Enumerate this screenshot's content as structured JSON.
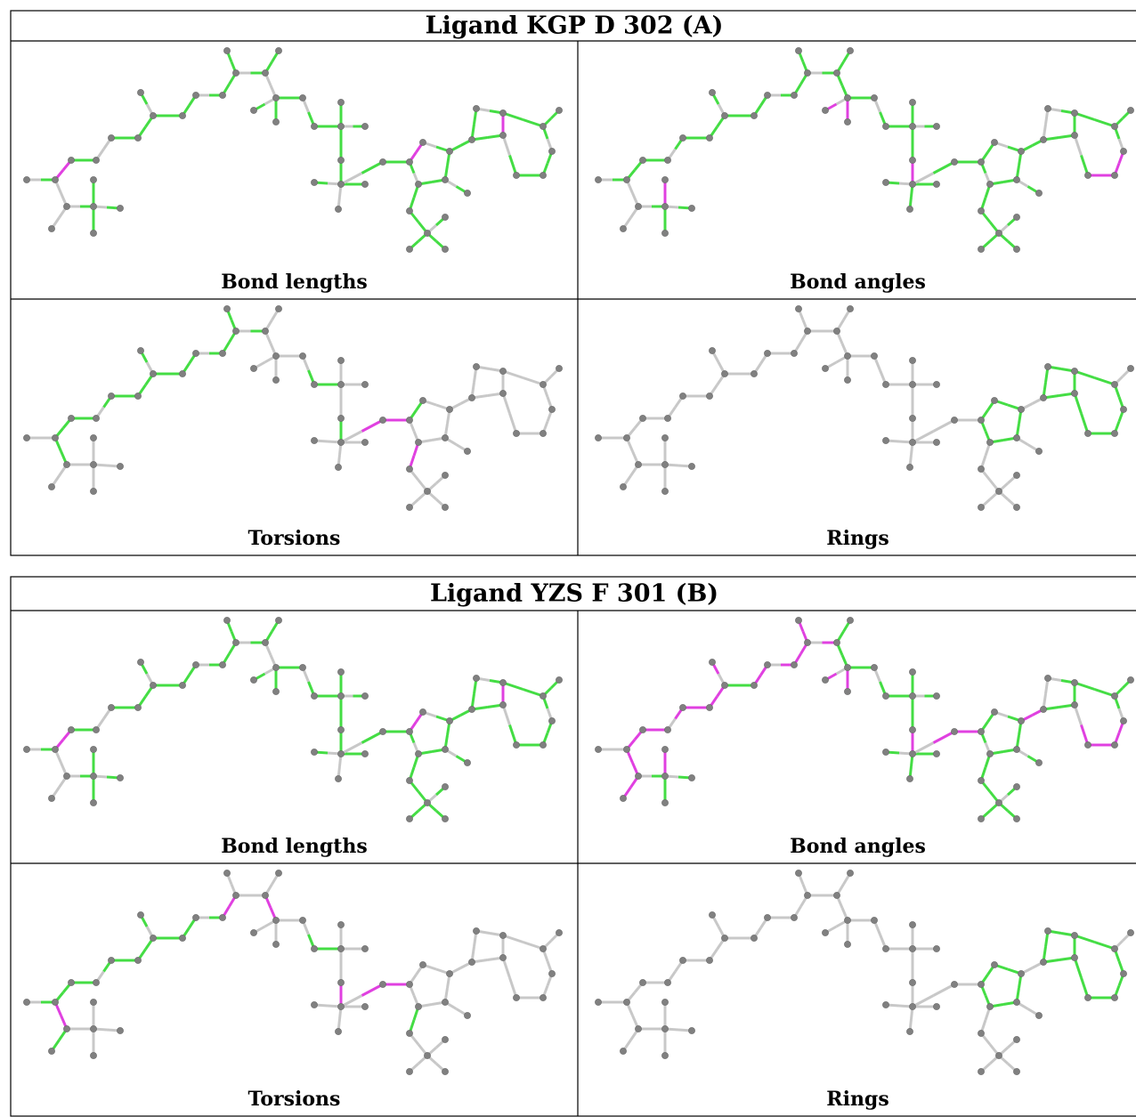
{
  "panels": [
    {
      "title": "Ligand KGP D 302 (A)",
      "cells": [
        {
          "caption": "Bond lengths"
        },
        {
          "caption": "Bond angles"
        },
        {
          "caption": "Torsions"
        },
        {
          "caption": "Rings"
        }
      ]
    },
    {
      "title": "Ligand YZS F 301 (B)",
      "cells": [
        {
          "caption": "Bond lengths"
        },
        {
          "caption": "Bond angles"
        },
        {
          "caption": "Torsions"
        },
        {
          "caption": "Rings"
        }
      ]
    }
  ]
}
